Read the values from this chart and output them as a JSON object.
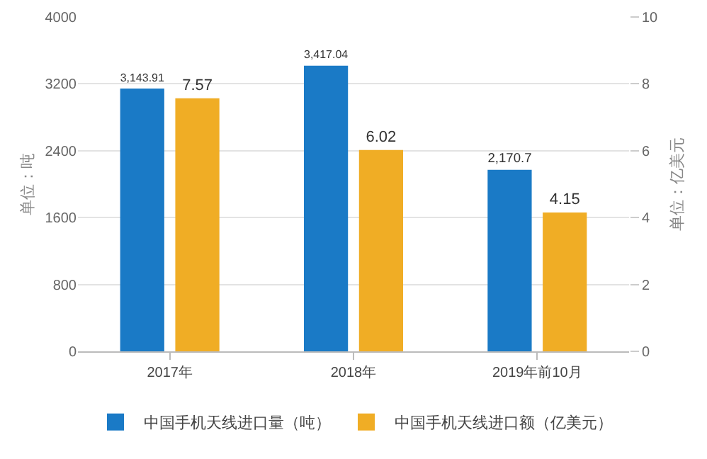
{
  "chart_data": {
    "type": "bar",
    "categories": [
      "2017年",
      "2018年",
      "2019年前10月"
    ],
    "series": [
      {
        "name": "中国手机天线进口量（吨）",
        "color": "#1a7ac6",
        "values": [
          3143.91,
          3417.04,
          2170.7
        ],
        "value_labels": [
          "3,143.91",
          "3,417.04",
          "2,170.7"
        ]
      },
      {
        "name": "中国手机天线进口额（亿美元）",
        "color": "#f0ad25",
        "values": [
          7.57,
          6.02,
          4.15
        ],
        "value_labels": [
          "7.57",
          "6.02",
          "4.15"
        ],
        "axis": "y2"
      }
    ],
    "ylabel": "单位：吨",
    "y2label": "单位：亿美元",
    "ylim": [
      0,
      4000
    ],
    "yticks": [
      0,
      800,
      1600,
      2400,
      3200,
      4000
    ],
    "y2lim": [
      0,
      10
    ],
    "y2ticks": [
      0,
      2,
      4,
      6,
      8,
      10
    ],
    "grid": "y",
    "legend": "bottom"
  }
}
